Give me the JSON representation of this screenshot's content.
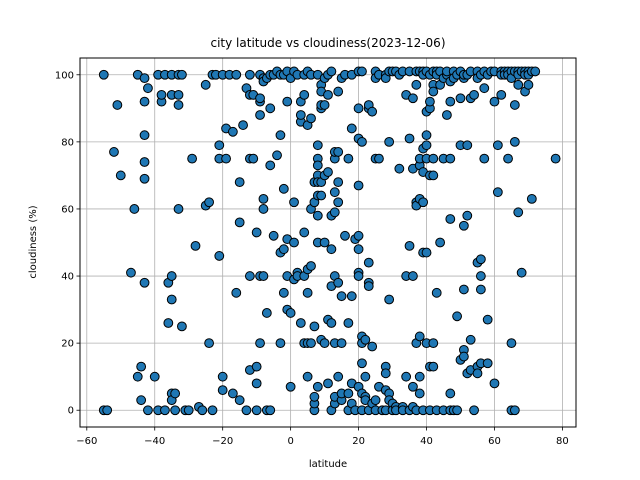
{
  "chart_data": {
    "type": "scatter",
    "title": "city latitude vs cloudiness(2023-12-06)",
    "xlabel": "latitude",
    "ylabel": "cloudiness (%)",
    "xlim": [
      -62,
      84
    ],
    "ylim": [
      -5,
      105
    ],
    "xticks": [
      -60,
      -40,
      -20,
      0,
      20,
      40,
      60,
      80
    ],
    "yticks": [
      0,
      20,
      40,
      60,
      80,
      100
    ],
    "grid": true,
    "colors": {
      "marker_fill": "#1f77b4",
      "marker_edge": "#000000",
      "grid": "#b0b0b0"
    },
    "points": [
      [
        -55,
        100
      ],
      [
        -55,
        0
      ],
      [
        -54,
        0
      ],
      [
        -52,
        77
      ],
      [
        -51,
        91
      ],
      [
        -50,
        70
      ],
      [
        -47,
        41
      ],
      [
        -46,
        60
      ],
      [
        -45,
        100
      ],
      [
        -45,
        10
      ],
      [
        -44,
        13
      ],
      [
        -44,
        3
      ],
      [
        -43,
        99
      ],
      [
        -43,
        92
      ],
      [
        -43,
        82
      ],
      [
        -43,
        74
      ],
      [
        -43,
        69
      ],
      [
        -43,
        38
      ],
      [
        -42,
        96
      ],
      [
        -42,
        0
      ],
      [
        -40,
        10
      ],
      [
        -39,
        100
      ],
      [
        -39,
        0
      ],
      [
        -38,
        92
      ],
      [
        -38,
        94
      ],
      [
        -37,
        100
      ],
      [
        -37,
        0
      ],
      [
        -36,
        38
      ],
      [
        -36,
        26
      ],
      [
        -35,
        100
      ],
      [
        -35,
        94
      ],
      [
        -35,
        40
      ],
      [
        -35,
        33
      ],
      [
        -35,
        5
      ],
      [
        -35,
        3
      ],
      [
        -34,
        5
      ],
      [
        -34,
        0
      ],
      [
        -33,
        94
      ],
      [
        -33,
        60
      ],
      [
        -33,
        91
      ],
      [
        -33,
        100
      ],
      [
        -32,
        100
      ],
      [
        -32,
        25
      ],
      [
        -31,
        0
      ],
      [
        -30,
        0
      ],
      [
        -29,
        75
      ],
      [
        -28,
        49
      ],
      [
        -27,
        1
      ],
      [
        -26,
        0
      ],
      [
        -25,
        97
      ],
      [
        -25,
        61
      ],
      [
        -24,
        62
      ],
      [
        -24,
        20
      ],
      [
        -23,
        100
      ],
      [
        -23,
        0
      ],
      [
        -22,
        100
      ],
      [
        -21,
        79
      ],
      [
        -21,
        75
      ],
      [
        -21,
        46
      ],
      [
        -20,
        100
      ],
      [
        -20,
        10
      ],
      [
        -20,
        6
      ],
      [
        -19,
        84
      ],
      [
        -19,
        75
      ],
      [
        -18,
        100
      ],
      [
        -17,
        83
      ],
      [
        -17,
        5
      ],
      [
        -16,
        35
      ],
      [
        -16,
        100
      ],
      [
        -15,
        3
      ],
      [
        -15,
        68
      ],
      [
        -15,
        56
      ],
      [
        -14,
        85
      ],
      [
        -13,
        96
      ],
      [
        -13,
        0
      ],
      [
        -12,
        94
      ],
      [
        -12,
        100
      ],
      [
        -12,
        75
      ],
      [
        -12,
        40
      ],
      [
        -12,
        12
      ],
      [
        -11,
        75
      ],
      [
        -11,
        94
      ],
      [
        -10,
        0
      ],
      [
        -10,
        8
      ],
      [
        -10,
        13
      ],
      [
        -10,
        53
      ],
      [
        -9,
        100
      ],
      [
        -9,
        92
      ],
      [
        -9,
        93
      ],
      [
        -9,
        88
      ],
      [
        -9,
        40
      ],
      [
        -9,
        20
      ],
      [
        -8,
        60
      ],
      [
        -8,
        99
      ],
      [
        -8,
        98
      ],
      [
        -8,
        63
      ],
      [
        -8,
        40
      ],
      [
        -7,
        99
      ],
      [
        -7,
        29
      ],
      [
        -7,
        0
      ],
      [
        -6,
        0
      ],
      [
        -6,
        100
      ],
      [
        -6,
        90
      ],
      [
        -6,
        73
      ],
      [
        -5,
        52
      ],
      [
        -5,
        100
      ],
      [
        -4,
        101
      ],
      [
        -4,
        76
      ],
      [
        -3,
        100
      ],
      [
        -3,
        47
      ],
      [
        -3,
        82
      ],
      [
        -3,
        20
      ],
      [
        -2,
        48
      ],
      [
        -2,
        100
      ],
      [
        -2,
        66
      ],
      [
        -2,
        35
      ],
      [
        -1,
        51
      ],
      [
        -1,
        101
      ],
      [
        -1,
        92
      ],
      [
        -1,
        40
      ],
      [
        -1,
        30
      ],
      [
        0,
        29
      ],
      [
        0,
        7
      ],
      [
        0,
        99
      ],
      [
        1,
        101
      ],
      [
        1,
        39
      ],
      [
        1,
        50
      ],
      [
        1,
        62
      ],
      [
        2,
        100
      ],
      [
        2,
        41
      ],
      [
        2,
        40
      ],
      [
        3,
        26
      ],
      [
        3,
        86
      ],
      [
        3,
        88
      ],
      [
        3,
        92
      ],
      [
        4,
        100
      ],
      [
        4,
        94
      ],
      [
        4,
        53
      ],
      [
        4,
        40
      ],
      [
        4,
        20
      ],
      [
        5,
        101
      ],
      [
        5,
        85
      ],
      [
        5,
        20
      ],
      [
        5,
        10
      ],
      [
        5,
        35
      ],
      [
        5,
        42
      ],
      [
        6,
        43
      ],
      [
        6,
        100
      ],
      [
        6,
        60
      ],
      [
        6,
        87
      ],
      [
        6,
        20
      ],
      [
        7,
        0
      ],
      [
        7,
        2
      ],
      [
        7,
        4
      ],
      [
        7,
        68
      ],
      [
        7,
        25
      ],
      [
        7,
        62
      ],
      [
        8,
        79
      ],
      [
        8,
        75
      ],
      [
        8,
        73
      ],
      [
        8,
        70
      ],
      [
        8,
        64
      ],
      [
        8,
        68
      ],
      [
        8,
        58
      ],
      [
        8,
        50
      ],
      [
        8,
        7
      ],
      [
        8,
        100
      ],
      [
        9,
        97
      ],
      [
        9,
        95
      ],
      [
        9,
        90
      ],
      [
        9,
        91
      ],
      [
        9,
        64
      ],
      [
        9,
        68
      ],
      [
        9,
        21
      ],
      [
        10,
        50
      ],
      [
        10,
        91
      ],
      [
        10,
        99
      ],
      [
        10,
        70
      ],
      [
        10,
        20
      ],
      [
        11,
        100
      ],
      [
        11,
        71
      ],
      [
        11,
        94
      ],
      [
        11,
        27
      ],
      [
        11,
        8
      ],
      [
        12,
        101
      ],
      [
        12,
        26
      ],
      [
        12,
        0
      ],
      [
        12,
        37
      ],
      [
        12,
        48
      ],
      [
        12,
        58
      ],
      [
        13,
        65
      ],
      [
        13,
        75
      ],
      [
        13,
        77
      ],
      [
        13,
        40
      ],
      [
        13,
        2
      ],
      [
        13,
        20
      ],
      [
        13,
        59
      ],
      [
        13,
        4
      ],
      [
        14,
        95
      ],
      [
        14,
        38
      ],
      [
        14,
        62
      ],
      [
        14,
        77
      ],
      [
        14,
        68
      ],
      [
        14,
        10
      ],
      [
        15,
        99
      ],
      [
        15,
        34
      ],
      [
        15,
        3
      ],
      [
        15,
        5
      ],
      [
        15,
        20
      ],
      [
        16,
        100
      ],
      [
        16,
        52
      ],
      [
        17,
        75
      ],
      [
        17,
        0
      ],
      [
        17,
        26
      ],
      [
        17,
        5
      ],
      [
        18,
        100
      ],
      [
        18,
        8
      ],
      [
        18,
        34
      ],
      [
        18,
        84
      ],
      [
        18,
        2
      ],
      [
        19,
        51
      ],
      [
        19,
        0
      ],
      [
        20,
        48
      ],
      [
        20,
        101
      ],
      [
        20,
        67
      ],
      [
        20,
        90
      ],
      [
        20,
        81
      ],
      [
        20,
        52
      ],
      [
        20,
        41
      ],
      [
        20,
        40
      ],
      [
        20,
        7
      ],
      [
        21,
        101
      ],
      [
        21,
        80
      ],
      [
        21,
        22
      ],
      [
        21,
        14
      ],
      [
        21,
        20
      ],
      [
        21,
        5
      ],
      [
        21,
        0
      ],
      [
        22,
        10
      ],
      [
        22,
        21
      ],
      [
        22,
        4
      ],
      [
        22,
        3
      ],
      [
        23,
        90
      ],
      [
        23,
        91
      ],
      [
        23,
        44
      ],
      [
        23,
        38
      ],
      [
        23,
        37
      ],
      [
        23,
        0
      ],
      [
        24,
        89
      ],
      [
        24,
        19
      ],
      [
        24,
        2
      ],
      [
        25,
        75
      ],
      [
        25,
        101
      ],
      [
        25,
        99
      ],
      [
        25,
        3
      ],
      [
        25,
        0
      ],
      [
        26,
        100
      ],
      [
        26,
        7
      ],
      [
        26,
        75
      ],
      [
        27,
        0
      ],
      [
        28,
        100
      ],
      [
        28,
        99
      ],
      [
        28,
        13
      ],
      [
        28,
        6
      ],
      [
        28,
        11
      ],
      [
        28,
        0
      ],
      [
        29,
        101
      ],
      [
        29,
        33
      ],
      [
        29,
        80
      ],
      [
        29,
        5
      ],
      [
        29,
        3
      ],
      [
        30,
        101
      ],
      [
        30,
        2
      ],
      [
        30,
        0
      ],
      [
        31,
        101
      ],
      [
        31,
        1
      ],
      [
        31,
        0
      ],
      [
        32,
        100
      ],
      [
        32,
        72
      ],
      [
        33,
        101
      ],
      [
        33,
        1
      ],
      [
        33,
        0
      ],
      [
        34,
        94
      ],
      [
        34,
        40
      ],
      [
        34,
        10
      ],
      [
        35,
        101
      ],
      [
        35,
        81
      ],
      [
        35,
        49
      ],
      [
        35,
        0
      ],
      [
        36,
        93
      ],
      [
        36,
        72
      ],
      [
        36,
        40
      ],
      [
        36,
        7
      ],
      [
        36,
        1
      ],
      [
        37,
        101
      ],
      [
        37,
        97
      ],
      [
        37,
        62
      ],
      [
        37,
        61
      ],
      [
        37,
        20
      ],
      [
        37,
        0
      ],
      [
        38,
        101
      ],
      [
        38,
        73
      ],
      [
        38,
        63
      ],
      [
        38,
        75
      ],
      [
        38,
        22
      ],
      [
        38,
        10
      ],
      [
        38,
        5
      ],
      [
        39,
        101
      ],
      [
        39,
        100
      ],
      [
        39,
        78
      ],
      [
        39,
        71
      ],
      [
        39,
        62
      ],
      [
        39,
        47
      ],
      [
        39,
        0
      ],
      [
        40,
        101
      ],
      [
        40,
        89
      ],
      [
        40,
        82
      ],
      [
        40,
        79
      ],
      [
        40,
        75
      ],
      [
        40,
        47
      ],
      [
        40,
        20
      ],
      [
        41,
        100
      ],
      [
        41,
        90
      ],
      [
        41,
        92
      ],
      [
        41,
        70
      ],
      [
        41,
        13
      ],
      [
        41,
        0
      ],
      [
        42,
        101
      ],
      [
        42,
        97
      ],
      [
        42,
        95
      ],
      [
        42,
        75
      ],
      [
        42,
        70
      ],
      [
        42,
        20
      ],
      [
        42,
        13
      ],
      [
        43,
        101
      ],
      [
        43,
        100
      ],
      [
        43,
        35
      ],
      [
        43,
        0
      ],
      [
        44,
        101
      ],
      [
        44,
        97
      ],
      [
        44,
        50
      ],
      [
        45,
        99
      ],
      [
        45,
        75
      ],
      [
        45,
        0
      ],
      [
        46,
        100
      ],
      [
        46,
        101
      ],
      [
        46,
        88
      ],
      [
        47,
        98
      ],
      [
        47,
        92
      ],
      [
        47,
        75
      ],
      [
        47,
        57
      ],
      [
        47,
        5
      ],
      [
        47,
        0
      ],
      [
        48,
        101
      ],
      [
        48,
        99
      ],
      [
        48,
        0
      ],
      [
        49,
        100
      ],
      [
        49,
        28
      ],
      [
        49,
        0
      ],
      [
        50,
        101
      ],
      [
        50,
        93
      ],
      [
        50,
        79
      ],
      [
        50,
        15
      ],
      [
        51,
        99
      ],
      [
        51,
        36
      ],
      [
        51,
        55
      ],
      [
        51,
        100
      ],
      [
        51,
        18
      ],
      [
        51,
        16
      ],
      [
        52,
        100
      ],
      [
        52,
        79
      ],
      [
        52,
        58
      ],
      [
        52,
        11
      ],
      [
        53,
        101
      ],
      [
        53,
        93
      ],
      [
        53,
        21
      ],
      [
        53,
        12
      ],
      [
        54,
        94
      ],
      [
        54,
        0
      ],
      [
        55,
        101
      ],
      [
        55,
        99
      ],
      [
        55,
        44
      ],
      [
        55,
        13
      ],
      [
        55,
        11
      ],
      [
        56,
        100
      ],
      [
        56,
        45
      ],
      [
        56,
        40
      ],
      [
        56,
        36
      ],
      [
        56,
        14
      ],
      [
        57,
        101
      ],
      [
        57,
        96
      ],
      [
        57,
        75
      ],
      [
        58,
        100
      ],
      [
        58,
        27
      ],
      [
        58,
        14
      ],
      [
        59,
        101
      ],
      [
        60,
        101
      ],
      [
        60,
        92
      ],
      [
        60,
        8
      ],
      [
        61,
        79
      ],
      [
        61,
        65
      ],
      [
        62,
        101
      ],
      [
        62,
        100
      ],
      [
        62,
        94
      ],
      [
        63,
        101
      ],
      [
        63,
        100
      ],
      [
        64,
        101
      ],
      [
        64,
        100
      ],
      [
        64,
        75
      ],
      [
        65,
        101
      ],
      [
        65,
        99
      ],
      [
        65,
        20
      ],
      [
        65,
        0
      ],
      [
        66,
        101
      ],
      [
        66,
        91
      ],
      [
        66,
        80
      ],
      [
        66,
        0
      ],
      [
        67,
        101
      ],
      [
        67,
        100
      ],
      [
        67,
        97
      ],
      [
        67,
        59
      ],
      [
        68,
        101
      ],
      [
        68,
        41
      ],
      [
        69,
        101
      ],
      [
        69,
        100
      ],
      [
        69,
        95
      ],
      [
        70,
        101
      ],
      [
        70,
        100
      ],
      [
        70,
        97
      ],
      [
        71,
        101
      ],
      [
        71,
        63
      ],
      [
        72,
        101
      ],
      [
        78,
        75
      ]
    ]
  }
}
